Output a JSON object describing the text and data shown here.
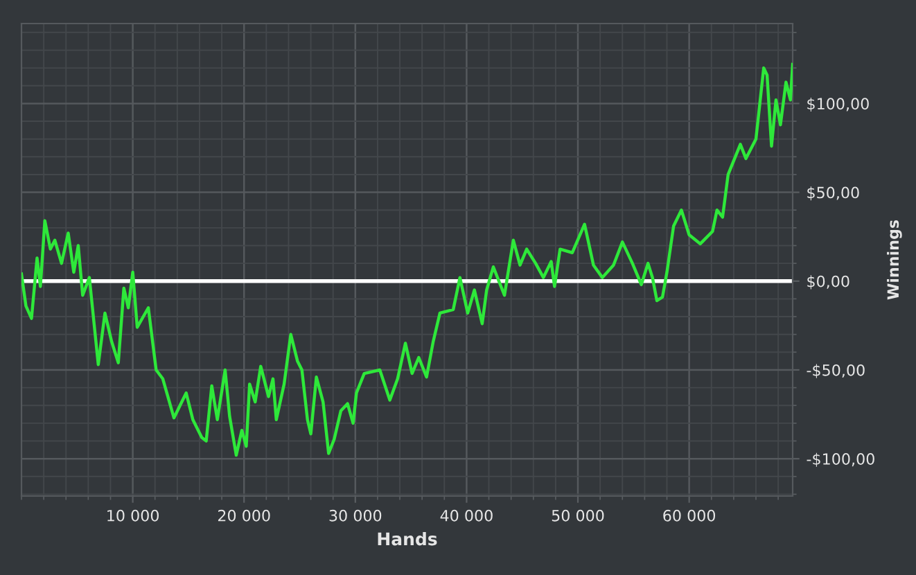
{
  "chart_data": {
    "type": "line",
    "xlabel": "Hands",
    "ylabel": "Winnings",
    "xlim": [
      0,
      69300
    ],
    "ylim": [
      -121,
      145
    ],
    "xticks": [
      {
        "value": 10000,
        "label": "10 000"
      },
      {
        "value": 20000,
        "label": "20 000"
      },
      {
        "value": 30000,
        "label": "30 000"
      },
      {
        "value": 40000,
        "label": "40 000"
      },
      {
        "value": 50000,
        "label": "50 000"
      },
      {
        "value": 60000,
        "label": "60 000"
      }
    ],
    "yticks": [
      {
        "value": -100,
        "label": "-$100,00"
      },
      {
        "value": -50,
        "label": "-$50,00"
      },
      {
        "value": 0,
        "label": "$0,00"
      },
      {
        "value": 50,
        "label": "$50,00"
      },
      {
        "value": 100,
        "label": "$100,00"
      }
    ],
    "grid": true,
    "marker": "none",
    "line_style": "solid",
    "ref_lines": [
      {
        "axis": "y",
        "value": 0,
        "label": null,
        "color": "#ffffff",
        "line_style": "solid"
      }
    ],
    "series": [
      {
        "color": "#2ee83a",
        "x": [
          0,
          400,
          900,
          1400,
          1700,
          2100,
          2600,
          3000,
          3600,
          4200,
          4700,
          5100,
          5500,
          6100,
          6900,
          7500,
          8100,
          8700,
          9200,
          9600,
          10000,
          10400,
          11400,
          12100,
          12700,
          13700,
          14800,
          15400,
          16200,
          16600,
          17100,
          17600,
          18300,
          18700,
          19300,
          19800,
          20200,
          20500,
          21000,
          21500,
          22200,
          22600,
          22900,
          23600,
          24200,
          24800,
          25200,
          25700,
          26000,
          26500,
          27100,
          27600,
          28100,
          28700,
          29300,
          29800,
          30100,
          30800,
          32200,
          33100,
          33800,
          34500,
          35100,
          35700,
          36400,
          37000,
          37600,
          38800,
          39400,
          40100,
          40700,
          41400,
          41800,
          42400,
          43400,
          44200,
          44800,
          45400,
          46200,
          46900,
          47600,
          47900,
          48400,
          49500,
          50600,
          51400,
          52200,
          53200,
          54000,
          54900,
          55700,
          56300,
          56700,
          57100,
          57600,
          58000,
          58600,
          59300,
          60000,
          61000,
          62100,
          62500,
          63000,
          63500,
          64600,
          65100,
          66000,
          66700,
          67000,
          67400,
          67800,
          68200,
          68700,
          69100,
          69300
        ],
        "values": [
          4,
          -14,
          -21,
          13,
          -3,
          34,
          18,
          23,
          10,
          27,
          5,
          20,
          -8,
          2,
          -47,
          -18,
          -34,
          -46,
          -4,
          -15,
          5,
          -26,
          -15,
          -50,
          -55,
          -77,
          -63,
          -78,
          -88,
          -90,
          -59,
          -78,
          -50,
          -76,
          -98,
          -84,
          -93,
          -58,
          -68,
          -48,
          -65,
          -55,
          -78,
          -58,
          -30,
          -45,
          -50,
          -78,
          -86,
          -54,
          -68,
          -97,
          -89,
          -73,
          -69,
          -80,
          -63,
          -52,
          -50,
          -67,
          -55,
          -35,
          -52,
          -43,
          -54,
          -34,
          -18,
          -16,
          2,
          -18,
          -5,
          -24,
          -5,
          8,
          -8,
          23,
          9,
          18,
          10,
          2,
          11,
          -3,
          18,
          16,
          32,
          9,
          2,
          9,
          22,
          10,
          -2,
          10,
          2,
          -11,
          -9,
          5,
          31,
          40,
          26,
          21,
          28,
          40,
          36,
          60,
          77,
          69,
          80,
          120,
          116,
          76,
          102,
          88,
          112,
          102,
          122
        ]
      }
    ]
  }
}
